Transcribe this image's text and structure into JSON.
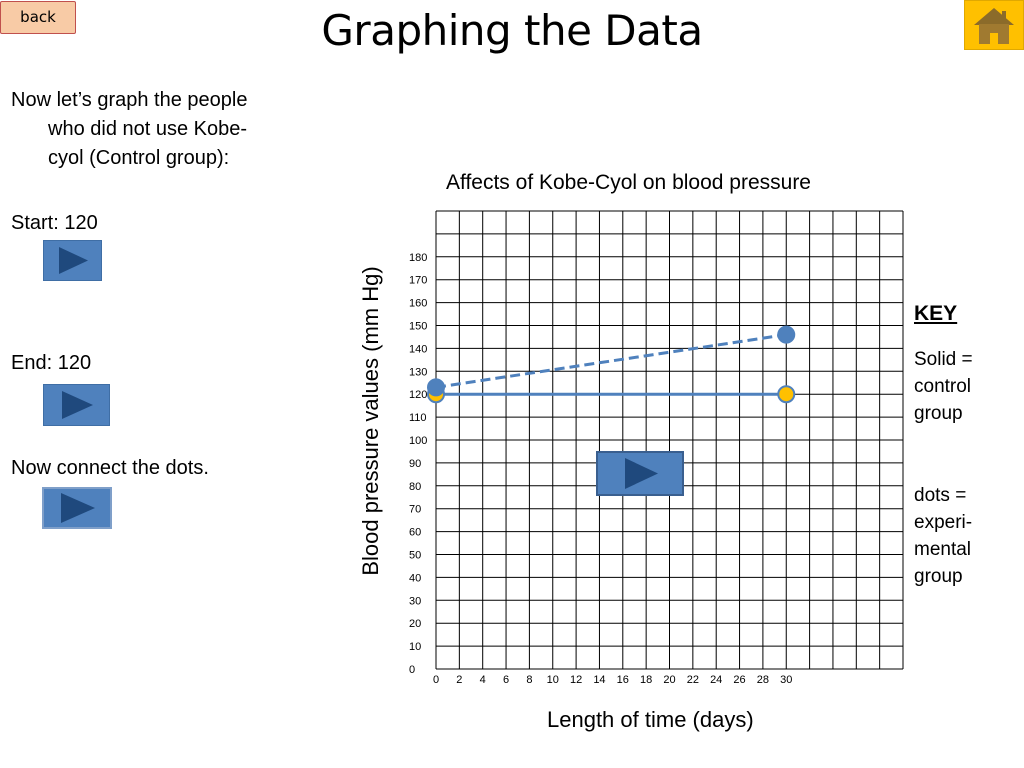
{
  "nav": {
    "back_label": "back",
    "home_icon": "home-icon"
  },
  "title": "Graphing the Data",
  "instructions": {
    "line1": "Now let’s graph the people",
    "line2": "who did not use Kobe-",
    "line3": "cyol (Control group):",
    "start": "Start: 120",
    "end": "End: 120",
    "connect": "Now connect the dots."
  },
  "key": {
    "heading": "KEY",
    "solid": [
      "Solid =",
      "control",
      "group"
    ],
    "dots": [
      "dots =",
      "experi-",
      "mental",
      "group"
    ]
  },
  "colors": {
    "accent": "#4f81bd",
    "point_fill": "#ffc000",
    "button": "#4f81bd",
    "play_triangle": "#1f497d"
  },
  "chart_data": {
    "type": "line",
    "title": "Affects of Kobe-Cyol on blood pressure",
    "xlabel": "Length of time (days)",
    "ylabel": "Blood pressure values (mm  Hg)",
    "x_ticks": [
      "0",
      "2",
      "4",
      "6",
      "8",
      "10",
      "12",
      "14",
      "16",
      "18",
      "20",
      "22",
      "24",
      "26",
      "28",
      "30"
    ],
    "y_ticks": [
      "0",
      "10",
      "20",
      "30",
      "40",
      "50",
      "60",
      "70",
      "80",
      "90",
      "100",
      "110",
      "120",
      "130",
      "140",
      "150",
      "160",
      "170",
      "180"
    ],
    "xlim": [
      0,
      40
    ],
    "ylim": [
      0,
      200
    ],
    "grid": true,
    "series": [
      {
        "style": "solid",
        "color": "#4f81bd",
        "point_fill": "#ffc000",
        "points": [
          [
            0,
            120
          ],
          [
            30,
            120
          ]
        ]
      },
      {
        "style": "dashed",
        "color": "#4f81bd",
        "point_fill": "#4f81bd",
        "points": [
          [
            0,
            123
          ],
          [
            30,
            146
          ]
        ]
      }
    ]
  }
}
